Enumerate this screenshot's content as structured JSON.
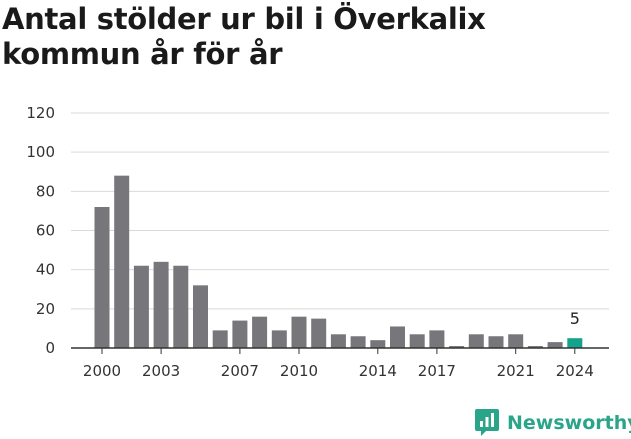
{
  "title": "Antal stölder ur bil i Överkalix kommun år för år",
  "brand": {
    "name": "Newsworthy",
    "icon": "newsworthy-logo-icon"
  },
  "colors": {
    "bar": "#77767b",
    "highlight": "#12a38a",
    "grid": "#d9d9d9",
    "axis": "#333333"
  },
  "chart_data": {
    "type": "bar",
    "title": "Antal stölder ur bil i Överkalix kommun år för år",
    "xlabel": "",
    "ylabel": "",
    "categories": [
      "2000",
      "2001",
      "2002",
      "2003",
      "2004",
      "2005",
      "2006",
      "2007",
      "2008",
      "2009",
      "2010",
      "2011",
      "2012",
      "2013",
      "2014",
      "2015",
      "2016",
      "2017",
      "2018",
      "2019",
      "2020",
      "2021",
      "2022",
      "2023",
      "2024"
    ],
    "values": [
      72,
      88,
      42,
      44,
      42,
      32,
      9,
      14,
      16,
      9,
      16,
      15,
      7,
      6,
      4,
      11,
      7,
      9,
      1,
      7,
      6,
      7,
      1,
      3,
      5
    ],
    "x_tick_labels": [
      "2000",
      "2003",
      "2007",
      "2010",
      "2014",
      "2017",
      "2021",
      "2024"
    ],
    "y_ticks": [
      "0",
      "20",
      "40",
      "60",
      "80",
      "100",
      "120"
    ],
    "ylim": [
      0,
      120
    ],
    "grid": true,
    "legend": "none",
    "highlight_category": "2024",
    "annotations": [
      {
        "category": "2024",
        "text": "5"
      }
    ]
  }
}
